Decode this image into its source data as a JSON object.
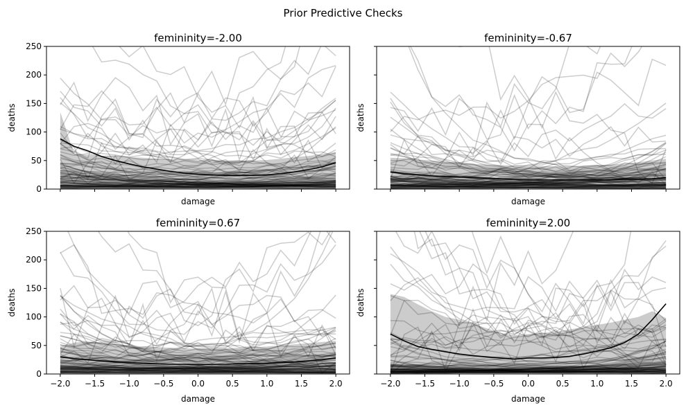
{
  "figure": {
    "title": "Prior Predictive Checks"
  },
  "chart_data": [
    {
      "type": "line",
      "title": "femininity=-2.00",
      "xlabel": "damage",
      "ylabel": "deaths",
      "xlim": [
        -2.2,
        2.2
      ],
      "ylim": [
        0,
        250
      ],
      "xticks": [
        -2.0,
        -1.5,
        -1.0,
        -0.5,
        0.0,
        0.5,
        1.0,
        1.5,
        2.0
      ],
      "yticks": [
        0,
        50,
        100,
        150,
        200,
        250
      ],
      "show_x_ticklabels": false,
      "show_y_ticklabels": true,
      "show_x_label": true,
      "show_y_label": true,
      "grid": false,
      "x": [
        -2.0,
        -1.8,
        -1.6,
        -1.4,
        -1.2,
        -1.0,
        -0.8,
        -0.6,
        -0.4,
        -0.2,
        0.0,
        0.2,
        0.4,
        0.6,
        0.8,
        1.0,
        1.2,
        1.4,
        1.6,
        1.8,
        2.0
      ],
      "mean": [
        88,
        75,
        67,
        57,
        50,
        44,
        39,
        35,
        31,
        28,
        26,
        25,
        24,
        24,
        24,
        25,
        27,
        30,
        34,
        39,
        46
      ],
      "band_upper": [
        135,
        62,
        60,
        58,
        58,
        56,
        55,
        53,
        51,
        50,
        50,
        50,
        50,
        50,
        50,
        51,
        53,
        56,
        58,
        61,
        65
      ],
      "band_lower": [
        0,
        0,
        0,
        0,
        0,
        0,
        0,
        0,
        0,
        0,
        0,
        0,
        0,
        0,
        0,
        0,
        0,
        0,
        0,
        0,
        0
      ],
      "draws": {
        "count": 90,
        "seed": 11,
        "high_count": 12,
        "min_mu": 30,
        "max_mu": 70
      }
    },
    {
      "type": "line",
      "title": "femininity=-0.67",
      "xlabel": "damage",
      "ylabel": "deaths",
      "xlim": [
        -2.2,
        2.2
      ],
      "ylim": [
        0,
        250
      ],
      "xticks": [
        -2.0,
        -1.5,
        -1.0,
        -0.5,
        0.0,
        0.5,
        1.0,
        1.5,
        2.0
      ],
      "yticks": [
        0,
        50,
        100,
        150,
        200,
        250
      ],
      "show_x_ticklabels": false,
      "show_y_ticklabels": false,
      "show_x_label": true,
      "show_y_label": true,
      "grid": false,
      "x": [
        -2.0,
        -1.8,
        -1.6,
        -1.4,
        -1.2,
        -1.0,
        -0.8,
        -0.6,
        -0.4,
        -0.2,
        0.0,
        0.2,
        0.4,
        0.6,
        0.8,
        1.0,
        1.2,
        1.4,
        1.6,
        1.8,
        2.0
      ],
      "mean": [
        30,
        27,
        25,
        23,
        22,
        21,
        20,
        19,
        18,
        17,
        16,
        16,
        16,
        16,
        16,
        16,
        16,
        17,
        17,
        18,
        20
      ],
      "band_upper": [
        55,
        54,
        52,
        50,
        48,
        46,
        44,
        43,
        42,
        41,
        40,
        40,
        40,
        40,
        41,
        42,
        43,
        45,
        47,
        50,
        53
      ],
      "band_lower": [
        0,
        0,
        0,
        0,
        0,
        0,
        0,
        0,
        0,
        0,
        0,
        0,
        0,
        0,
        0,
        0,
        0,
        0,
        0,
        0,
        0
      ],
      "draws": {
        "count": 90,
        "seed": 23,
        "high_count": 8,
        "min_mu": 25,
        "max_mu": 60
      }
    },
    {
      "type": "line",
      "title": "femininity=0.67",
      "xlabel": "damage",
      "ylabel": "deaths",
      "xlim": [
        -2.2,
        2.2
      ],
      "ylim": [
        0,
        250
      ],
      "xticks": [
        -2.0,
        -1.5,
        -1.0,
        -0.5,
        0.0,
        0.5,
        1.0,
        1.5,
        2.0
      ],
      "yticks": [
        0,
        50,
        100,
        150,
        200,
        250
      ],
      "show_x_ticklabels": true,
      "show_y_ticklabels": true,
      "show_x_label": true,
      "show_y_label": true,
      "grid": false,
      "x": [
        -2.0,
        -1.8,
        -1.6,
        -1.4,
        -1.2,
        -1.0,
        -0.8,
        -0.6,
        -0.4,
        -0.2,
        0.0,
        0.2,
        0.4,
        0.6,
        0.8,
        1.0,
        1.2,
        1.4,
        1.6,
        1.8,
        2.0
      ],
      "mean": [
        30,
        27,
        25,
        23,
        21,
        20,
        19,
        18,
        17,
        17,
        16,
        17,
        17,
        18,
        18,
        19,
        20,
        21,
        23,
        25,
        28
      ],
      "band_upper": [
        48,
        55,
        57,
        55,
        52,
        50,
        48,
        47,
        46,
        45,
        44,
        45,
        45,
        46,
        47,
        48,
        50,
        52,
        54,
        56,
        58
      ],
      "band_lower": [
        0,
        0,
        0,
        0,
        0,
        0,
        0,
        0,
        0,
        0,
        0,
        0,
        0,
        0,
        0,
        0,
        0,
        0,
        0,
        0,
        0
      ],
      "draws": {
        "count": 90,
        "seed": 37,
        "high_count": 10,
        "min_mu": 25,
        "max_mu": 65
      }
    },
    {
      "type": "line",
      "title": "femininity=2.00",
      "xlabel": "damage",
      "ylabel": "deaths",
      "xlim": [
        -2.2,
        2.2
      ],
      "ylim": [
        0,
        250
      ],
      "xticks": [
        -2.0,
        -1.5,
        -1.0,
        -0.5,
        0.0,
        0.5,
        1.0,
        1.5,
        2.0
      ],
      "yticks": [
        0,
        50,
        100,
        150,
        200,
        250
      ],
      "show_x_ticklabels": true,
      "show_y_ticklabels": false,
      "show_x_label": true,
      "show_y_label": true,
      "grid": false,
      "x": [
        -2.0,
        -1.8,
        -1.6,
        -1.4,
        -1.2,
        -1.0,
        -0.8,
        -0.6,
        -0.4,
        -0.2,
        0.0,
        0.2,
        0.4,
        0.6,
        0.8,
        1.0,
        1.2,
        1.4,
        1.6,
        1.8,
        2.0
      ],
      "mean": [
        70,
        58,
        48,
        43,
        39,
        35,
        32,
        30,
        28,
        26,
        28,
        28,
        29,
        31,
        35,
        40,
        46,
        55,
        70,
        95,
        123
      ],
      "band_upper": [
        140,
        135,
        122,
        110,
        100,
        95,
        88,
        80,
        72,
        68,
        70,
        72,
        74,
        78,
        82,
        86,
        90,
        95,
        100,
        110,
        98
      ],
      "band_lower": [
        0,
        0,
        0,
        0,
        0,
        0,
        0,
        0,
        0,
        0,
        0,
        0,
        0,
        0,
        0,
        0,
        0,
        0,
        0,
        0,
        0
      ],
      "draws": {
        "count": 90,
        "seed": 53,
        "high_count": 14,
        "min_mu": 35,
        "max_mu": 80
      }
    }
  ],
  "colors": {
    "band_fill": "#000000",
    "mean_line": "#000000",
    "draw_line": "#000000",
    "axes": "#000000",
    "background": "#ffffff"
  }
}
